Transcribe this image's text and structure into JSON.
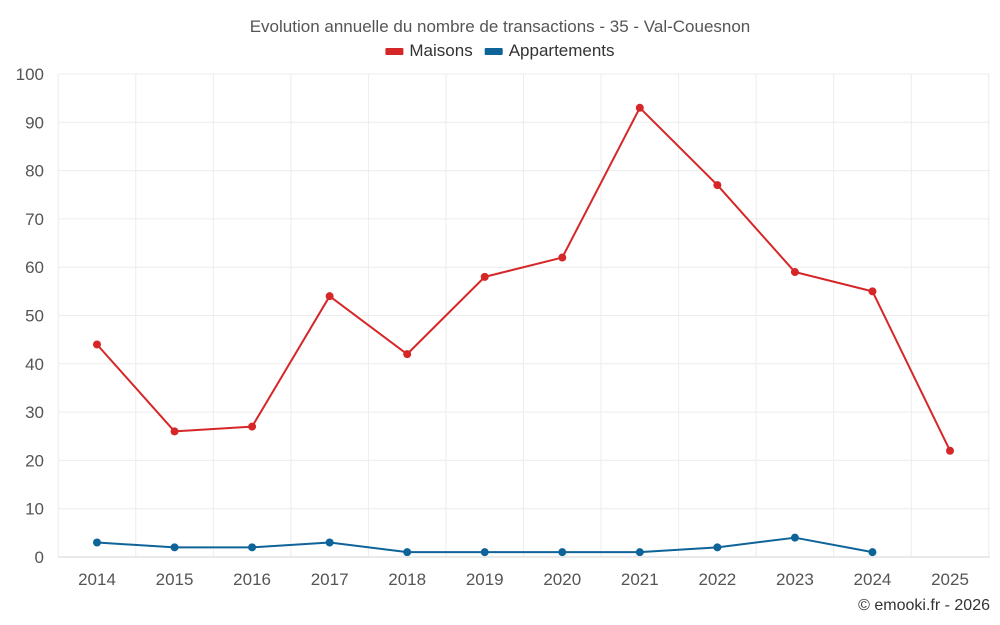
{
  "chart_data": {
    "type": "line",
    "title": "Evolution annuelle du nombre de transactions - 35 - Val-Couesnon",
    "categories": [
      "2014",
      "2015",
      "2016",
      "2017",
      "2018",
      "2019",
      "2020",
      "2021",
      "2022",
      "2023",
      "2024",
      "2025"
    ],
    "series": [
      {
        "name": "Maisons",
        "color": "#d62728",
        "values": [
          44,
          26,
          27,
          54,
          42,
          58,
          62,
          93,
          77,
          59,
          55,
          22
        ]
      },
      {
        "name": "Appartements",
        "color": "#0e6399",
        "values": [
          3,
          2,
          2,
          3,
          1,
          1,
          1,
          1,
          2,
          4,
          1,
          null
        ]
      }
    ],
    "yticks": [
      "0",
      "10",
      "20",
      "30",
      "40",
      "50",
      "60",
      "70",
      "80",
      "90",
      "100"
    ],
    "ylim": [
      0,
      100
    ],
    "xlabel": "",
    "ylabel": "",
    "grid": true,
    "legend": "top-center",
    "credit": "© emooki.fr - 2026"
  }
}
